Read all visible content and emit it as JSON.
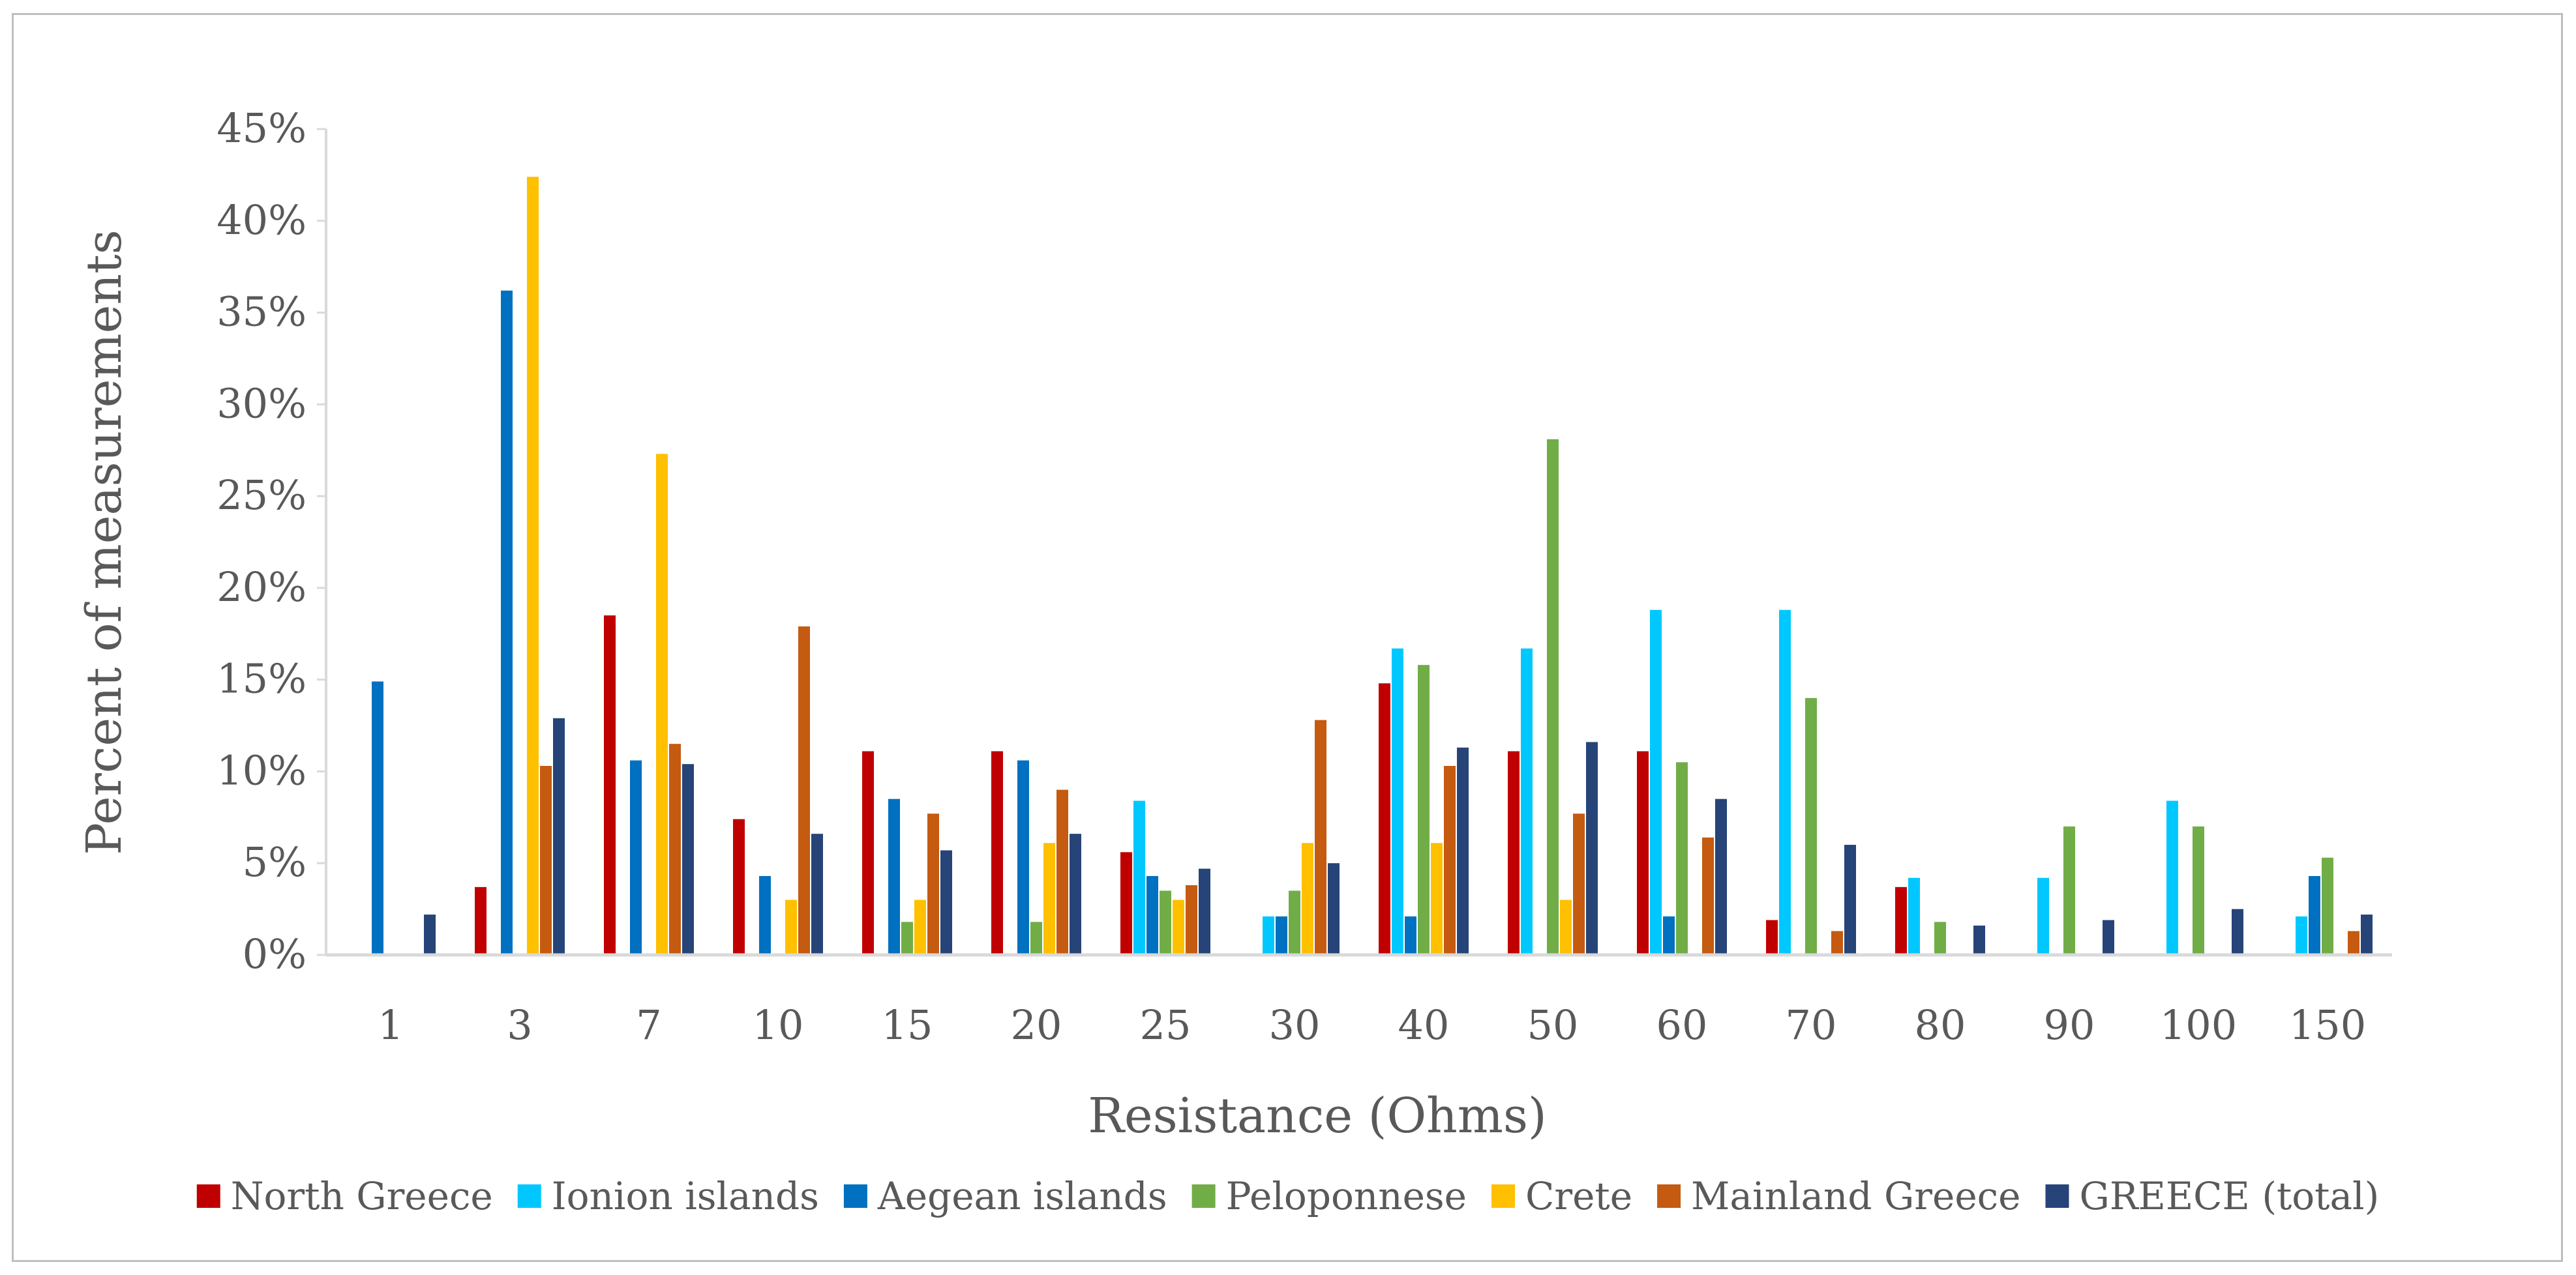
{
  "chart_data": {
    "type": "bar",
    "title": "",
    "xlabel": "Resistance  (Ohms)",
    "ylabel": "Percent of measurements",
    "ylim": [
      0,
      45
    ],
    "ytick_step": 5,
    "ytick_suffix": "%",
    "categories": [
      "1",
      "3",
      "7",
      "10",
      "15",
      "20",
      "25",
      "30",
      "40",
      "50",
      "60",
      "70",
      "80",
      "90",
      "100",
      "150"
    ],
    "series": [
      {
        "name": "North Greece",
        "color": "#c00000",
        "values": [
          0,
          3.7,
          18.5,
          7.4,
          11.1,
          11.1,
          5.6,
          0,
          14.8,
          11.1,
          11.1,
          1.9,
          3.7,
          0,
          0,
          0
        ]
      },
      {
        "name": "Ionion islands",
        "color": "#00c8ff",
        "values": [
          0,
          0,
          0,
          0,
          0,
          0,
          8.4,
          2.1,
          16.7,
          16.7,
          18.8,
          18.8,
          4.2,
          4.2,
          8.4,
          2.1
        ]
      },
      {
        "name": "Aegean islands",
        "color": "#0070c0",
        "values": [
          14.9,
          36.2,
          10.6,
          4.3,
          8.5,
          10.6,
          4.3,
          2.1,
          2.1,
          0,
          2.1,
          0,
          0,
          0,
          0,
          4.3
        ]
      },
      {
        "name": "Peloponnese",
        "color": "#70ad47",
        "values": [
          0,
          0,
          0,
          0,
          1.8,
          1.8,
          3.5,
          3.5,
          15.8,
          28.1,
          10.5,
          14.0,
          1.8,
          7.0,
          7.0,
          5.3
        ]
      },
      {
        "name": "Crete",
        "color": "#ffc000",
        "values": [
          0,
          42.4,
          27.3,
          3.0,
          3.0,
          6.1,
          3.0,
          6.1,
          6.1,
          3.0,
          0,
          0,
          0,
          0,
          0,
          0
        ]
      },
      {
        "name": "Mainland Greece",
        "color": "#c55a11",
        "values": [
          0,
          10.3,
          11.5,
          17.9,
          7.7,
          9.0,
          3.8,
          12.8,
          10.3,
          7.7,
          6.4,
          1.3,
          0,
          0,
          0,
          1.3
        ]
      },
      {
        "name": "GREECE (total)",
        "color": "#264478",
        "values": [
          2.2,
          12.9,
          10.4,
          6.6,
          5.7,
          6.6,
          4.7,
          5.0,
          11.3,
          11.6,
          8.5,
          6.0,
          1.6,
          1.9,
          2.5,
          2.2
        ]
      }
    ],
    "legend_position": "bottom"
  }
}
